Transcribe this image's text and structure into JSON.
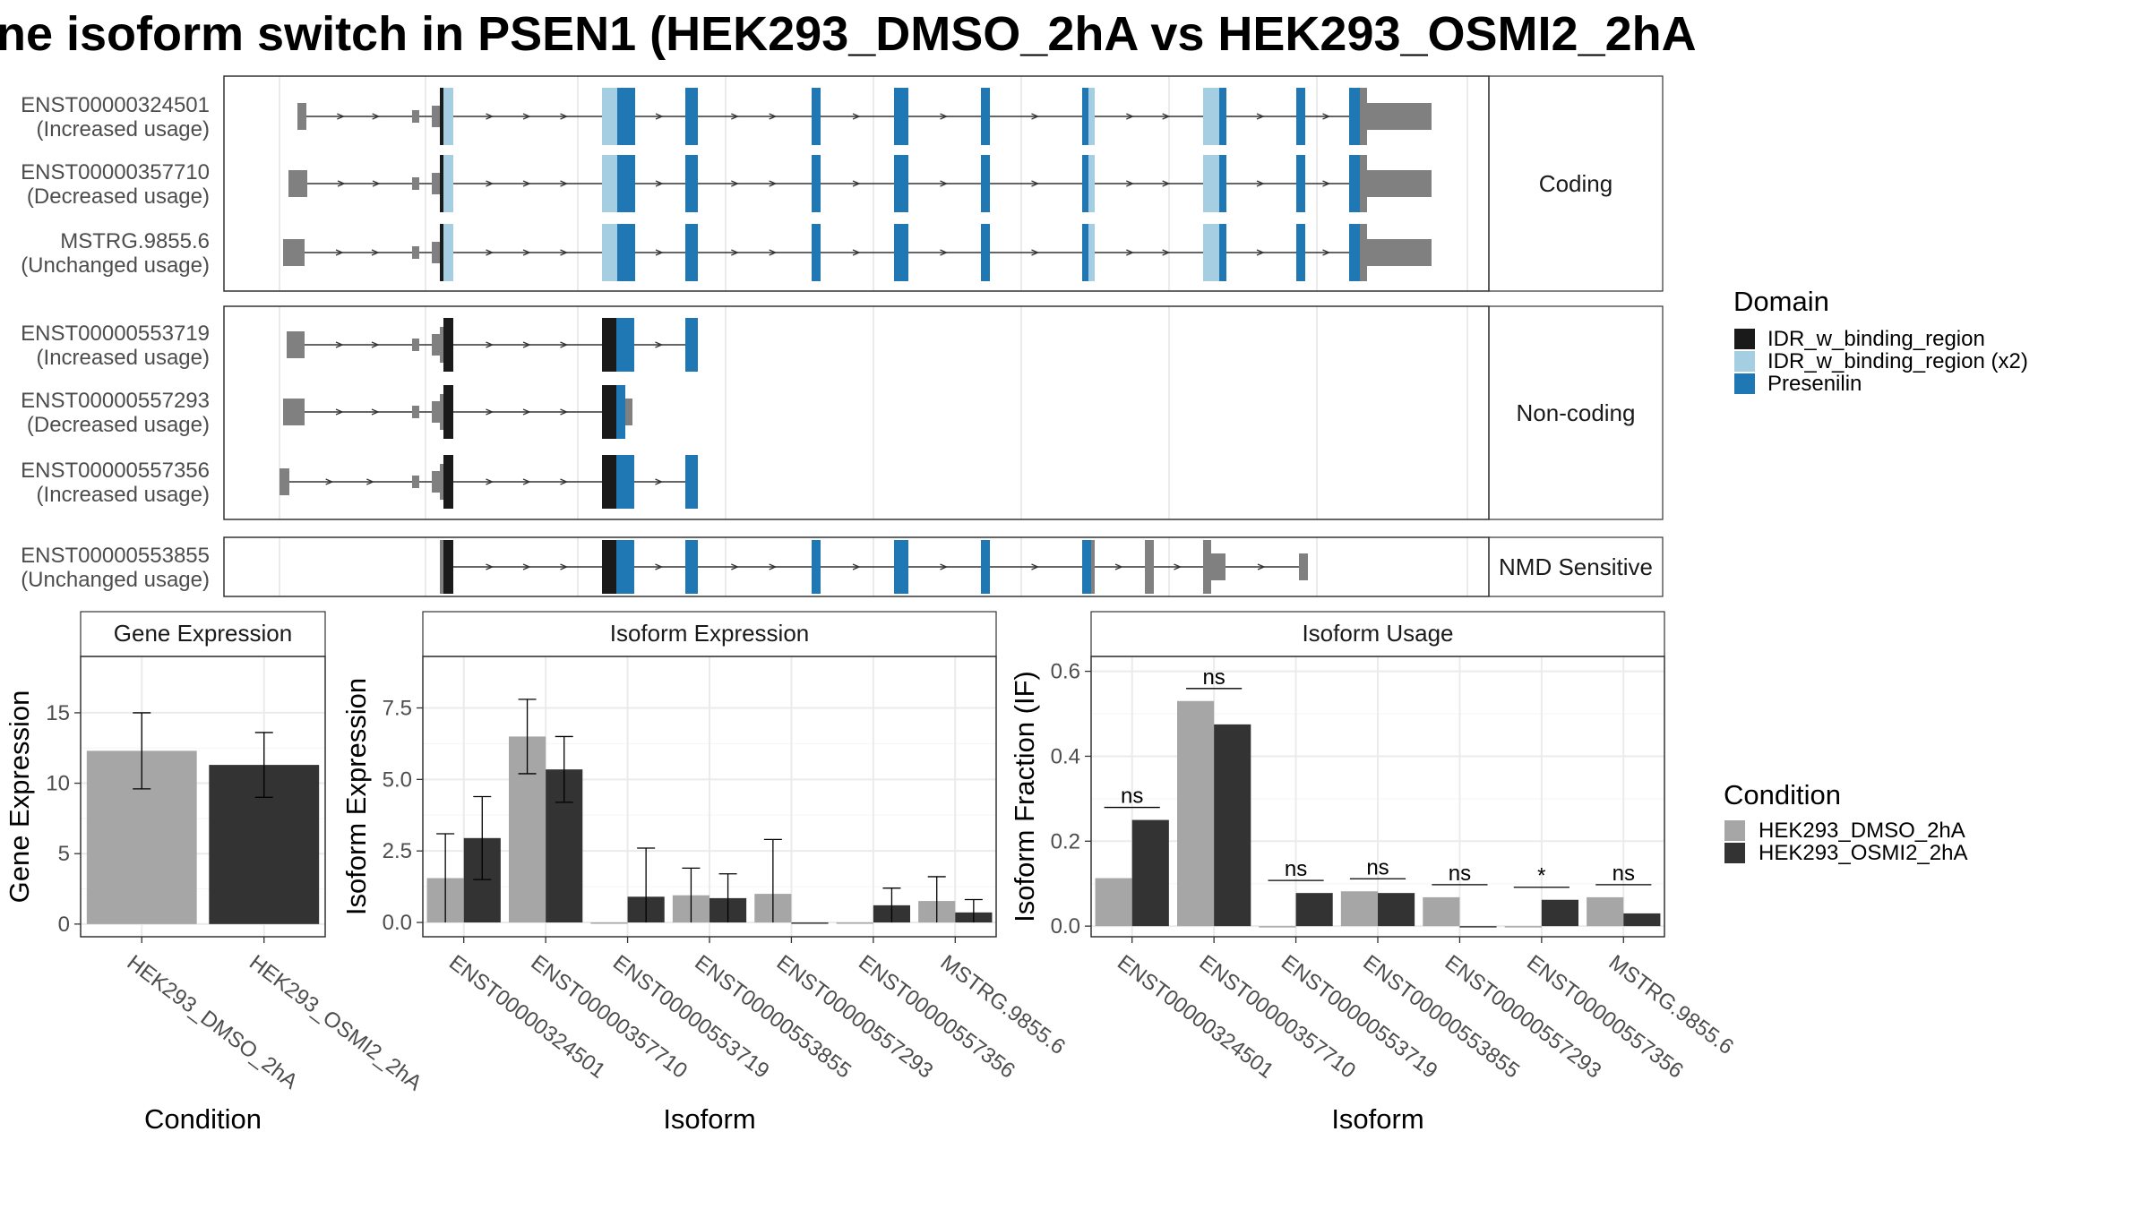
{
  "title": "ne isoform switch in PSEN1 (HEK293_DMSO_2hA vs HEK293_OSMI2_2hA",
  "colors": {
    "dmso": "#a6a6a6",
    "osmi": "#333333",
    "intron_exon": "#808080",
    "idr": "#1a1a1a",
    "idr_x2": "#a6cee3",
    "presenilin": "#1f78b4"
  },
  "structure": {
    "groups": [
      {
        "label": "Coding",
        "isoforms": [
          {
            "id": "ENST00000324501",
            "usage": "(Increased usage)"
          },
          {
            "id": "ENST00000357710",
            "usage": "(Decreased usage)"
          },
          {
            "id": "MSTRG.9855.6",
            "usage": "(Unchanged usage)"
          }
        ]
      },
      {
        "label": "Non-coding",
        "isoforms": [
          {
            "id": "ENST00000553719",
            "usage": "(Increased usage)"
          },
          {
            "id": "ENST00000557293",
            "usage": "(Decreased usage)"
          },
          {
            "id": "ENST00000557356",
            "usage": "(Increased usage)"
          }
        ]
      },
      {
        "label": "NMD Sensitive",
        "isoforms": [
          {
            "id": "ENST00000553855",
            "usage": "(Unchanged usage)"
          }
        ]
      }
    ]
  },
  "domain_legend": {
    "title": "Domain",
    "items": [
      {
        "label": "IDR_w_binding_region",
        "color": "#1a1a1a"
      },
      {
        "label": "IDR_w_binding_region (x2)",
        "color": "#a6cee3"
      },
      {
        "label": "Presenilin",
        "color": "#1f78b4"
      }
    ]
  },
  "condition_legend": {
    "title": "Condition",
    "items": [
      {
        "label": "HEK293_DMSO_2hA",
        "color": "#a6a6a6"
      },
      {
        "label": "HEK293_OSMI2_2hA",
        "color": "#333333"
      }
    ]
  },
  "chart_data": [
    {
      "type": "bar",
      "title": "Gene Expression",
      "xlabel": "Condition",
      "ylabel": "Gene Expression",
      "categories": [
        "HEK293_DMSO_2hA",
        "HEK293_OSMI2_2hA"
      ],
      "values": [
        12.3,
        11.3
      ],
      "errors": [
        [
          9.6,
          15.0
        ],
        [
          9.0,
          13.6
        ]
      ],
      "ylim": [
        -0.9,
        19
      ],
      "yticks": [
        0,
        5,
        10,
        15
      ],
      "grid": true
    },
    {
      "type": "bar",
      "title": "Isoform Expression",
      "xlabel": "Isoform",
      "ylabel": "Isoform Expression",
      "categories": [
        "ENST00000324501",
        "ENST00000357710",
        "ENST00000553719",
        "ENST00000553855",
        "ENST00000557293",
        "ENST00000557356",
        "MSTRG.9855.6"
      ],
      "series": [
        {
          "name": "HEK293_DMSO_2hA",
          "values": [
            1.55,
            6.5,
            0.0,
            0.95,
            1.0,
            0.0,
            0.75
          ],
          "errors": [
            [
              0.0,
              3.1
            ],
            [
              5.2,
              7.8
            ],
            [
              0.0,
              0.0
            ],
            [
              0.0,
              1.9
            ],
            [
              0.0,
              2.9
            ],
            [
              0.0,
              0.0
            ],
            [
              0.0,
              1.6
            ]
          ]
        },
        {
          "name": "HEK293_OSMI2_2hA",
          "values": [
            2.95,
            5.35,
            0.9,
            0.85,
            0.0,
            0.6,
            0.35
          ],
          "errors": [
            [
              1.5,
              4.4
            ],
            [
              4.2,
              6.5
            ],
            [
              0.0,
              2.6
            ],
            [
              0.0,
              1.7
            ],
            [
              0.0,
              0.0
            ],
            [
              0.0,
              1.2
            ],
            [
              0.0,
              0.8
            ]
          ]
        }
      ],
      "ylim": [
        -0.5,
        9.3
      ],
      "yticks": [
        0.0,
        2.5,
        5.0,
        7.5
      ],
      "grid": true
    },
    {
      "type": "bar",
      "title": "Isoform Usage",
      "xlabel": "Isoform",
      "ylabel": "Isoform Fraction (IF)",
      "categories": [
        "ENST00000324501",
        "ENST00000357710",
        "ENST00000553719",
        "ENST00000553855",
        "ENST00000557293",
        "ENST00000557356",
        "MSTRG.9855.6"
      ],
      "series": [
        {
          "name": "HEK293_DMSO_2hA",
          "values": [
            0.113,
            0.53,
            0.0,
            0.082,
            0.068,
            0.0,
            0.068
          ]
        },
        {
          "name": "HEK293_OSMI2_2hA",
          "values": [
            0.25,
            0.475,
            0.078,
            0.078,
            0.0,
            0.062,
            0.03
          ]
        }
      ],
      "significance": [
        "ns",
        "ns",
        "ns",
        "ns",
        "ns",
        "*",
        "ns"
      ],
      "ylim": [
        -0.025,
        0.635
      ],
      "yticks": [
        0.0,
        0.2,
        0.4,
        0.6
      ],
      "grid": true
    }
  ]
}
